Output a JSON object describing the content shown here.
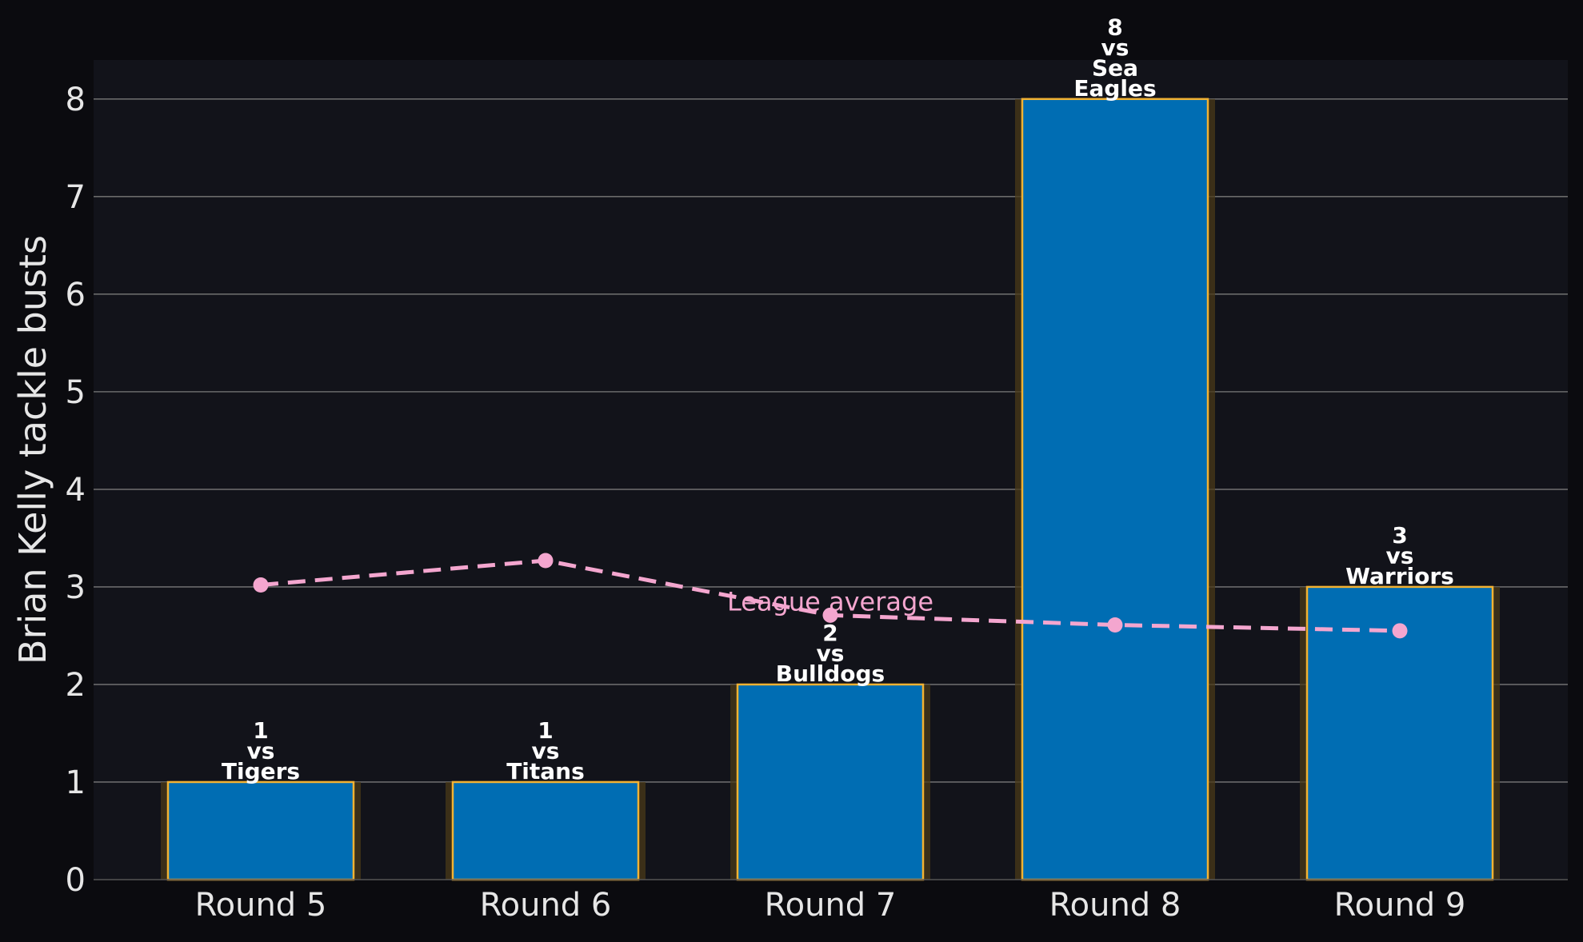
{
  "chart_data": {
    "type": "bar",
    "categories": [
      "Round 5",
      "Round 6",
      "Round 7",
      "Round 8",
      "Round 9"
    ],
    "series": [
      {
        "values": [
          1,
          1,
          2,
          8,
          3
        ]
      }
    ],
    "bar_labels": [
      [
        "1",
        "vs",
        "Tigers"
      ],
      [
        "1",
        "vs",
        "Titans"
      ],
      [
        "2",
        "vs",
        "Bulldogs"
      ],
      [
        "8",
        "vs",
        "Sea",
        "Eagles"
      ],
      [
        "3",
        "vs",
        "Warriors"
      ]
    ],
    "overlay_line": {
      "name": "League average",
      "values": [
        3.02,
        3.27,
        2.71,
        2.61,
        2.55
      ],
      "color": "#f4a6cf",
      "style": "dashed"
    },
    "title": "",
    "xlabel": "",
    "ylabel": "Brian Kelly tackle busts",
    "ylim": [
      0,
      8.4
    ],
    "yticks": [
      0,
      1,
      2,
      3,
      4,
      5,
      6,
      7,
      8
    ],
    "grid": "horizontal",
    "colors": {
      "bar_fill": "#006db3",
      "bar_edge": "#f2b233",
      "bar_glow": "#4a3a18",
      "plot_bg": "#12131a",
      "page_bg": "#0b0b0f",
      "grid": "#6a6a6a"
    }
  }
}
